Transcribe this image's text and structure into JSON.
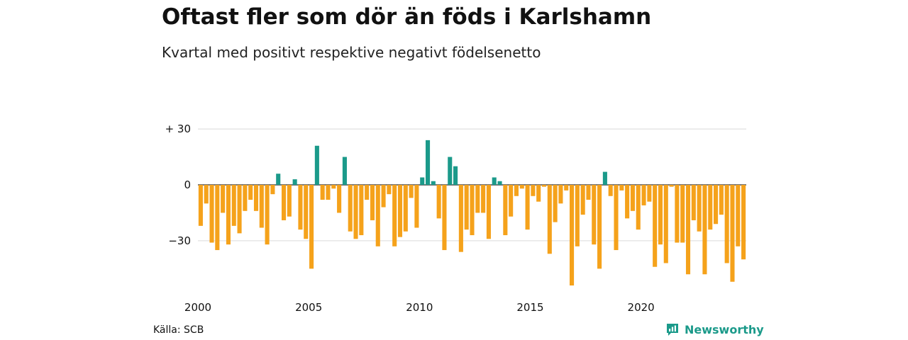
{
  "header": {
    "title": "Oftast fler som dör än föds i Karlshamn",
    "subtitle": "Kvartal med positivt respektive negativt födelsenetto"
  },
  "footer": {
    "source": "Källa: SCB",
    "brand": "Newsworthy",
    "brand_icon": "newsworthy-logo-icon"
  },
  "colors": {
    "positive": "#1b9a8a",
    "negative": "#f5a21b",
    "grid": "#d9d9d9",
    "zero_line": "#222222",
    "brand": "#1b9a8a"
  },
  "chart_data": {
    "type": "bar",
    "title": "Oftast fler som dör än föds i Karlshamn",
    "subtitle": "Kvartal med positivt respektive negativt födelsenetto",
    "x_start": "2000 Q1",
    "x_tick_labels": [
      "2000",
      "2005",
      "2010",
      "2015",
      "2020"
    ],
    "y_tick_labels": [
      "+ 30",
      "0",
      "−30"
    ],
    "y_ticks": [
      30,
      0,
      -30
    ],
    "ylim": [
      -55,
      30
    ],
    "grid": true,
    "series": [
      {
        "values": [
          -22,
          -10,
          -31,
          -35,
          -15,
          -32,
          -22,
          -26,
          -14,
          -8,
          -14,
          -23,
          -32,
          -5,
          6,
          -19,
          -17,
          3,
          -24,
          -29,
          -45,
          21,
          -8,
          -8,
          -2,
          -15,
          15,
          -25,
          -29,
          -27,
          -8,
          -19,
          -33,
          -12,
          -5,
          -33,
          -28,
          -25,
          -7,
          -23,
          4,
          24,
          2,
          -18,
          -35,
          15,
          10,
          -36,
          -24,
          -27,
          -15,
          -15,
          -29,
          4,
          2,
          -27,
          -17,
          -6,
          -2,
          -24,
          -6,
          -9,
          -1,
          -37,
          -20,
          -10,
          -3,
          -54,
          -33,
          -16,
          -8,
          -32,
          -45,
          7,
          -6,
          -35,
          -3,
          -18,
          -14,
          -24,
          -11,
          -9,
          -44,
          -32,
          -42,
          -1,
          -31,
          -31,
          -48,
          -19,
          -25,
          -48,
          -24,
          -21,
          -16,
          -42,
          -52,
          -33,
          -40
        ]
      }
    ]
  }
}
